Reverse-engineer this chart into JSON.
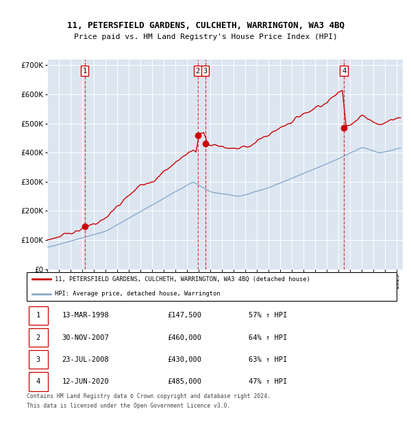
{
  "title_line1": "11, PETERSFIELD GARDENS, CULCHETH, WARRINGTON, WA3 4BQ",
  "title_line2": "Price paid vs. HM Land Registry's House Price Index (HPI)",
  "plot_bg_color": "#dce6f1",
  "legend_label_red": "11, PETERSFIELD GARDENS, CULCHETH, WARRINGTON, WA3 4BQ (detached house)",
  "legend_label_blue": "HPI: Average price, detached house, Warrington",
  "footer_line1": "Contains HM Land Registry data © Crown copyright and database right 2024.",
  "footer_line2": "This data is licensed under the Open Government Licence v3.0.",
  "transactions": [
    {
      "num": 1,
      "date": "13-MAR-1998",
      "price": "£147,500",
      "pct": "57% ↑ HPI",
      "year": 1998.21
    },
    {
      "num": 2,
      "date": "30-NOV-2007",
      "price": "£460,000",
      "pct": "64% ↑ HPI",
      "year": 2007.92
    },
    {
      "num": 3,
      "date": "23-JUL-2008",
      "price": "£430,000",
      "pct": "63% ↑ HPI",
      "year": 2008.55
    },
    {
      "num": 4,
      "date": "12-JUN-2020",
      "price": "£485,000",
      "pct": "47% ↑ HPI",
      "year": 2020.45
    }
  ],
  "trans_prices": [
    147500,
    460000,
    430000,
    485000
  ],
  "red_line_color": "#cc0000",
  "blue_line_color": "#88aacc",
  "ylim": [
    0,
    720000
  ],
  "yticks": [
    0,
    100000,
    200000,
    300000,
    400000,
    500000,
    600000,
    700000
  ],
  "ytick_labels": [
    "£0",
    "£100K",
    "£200K",
    "£300K",
    "£400K",
    "£500K",
    "£600K",
    "£700K"
  ],
  "xmin": 1995.0,
  "xmax": 2025.5
}
